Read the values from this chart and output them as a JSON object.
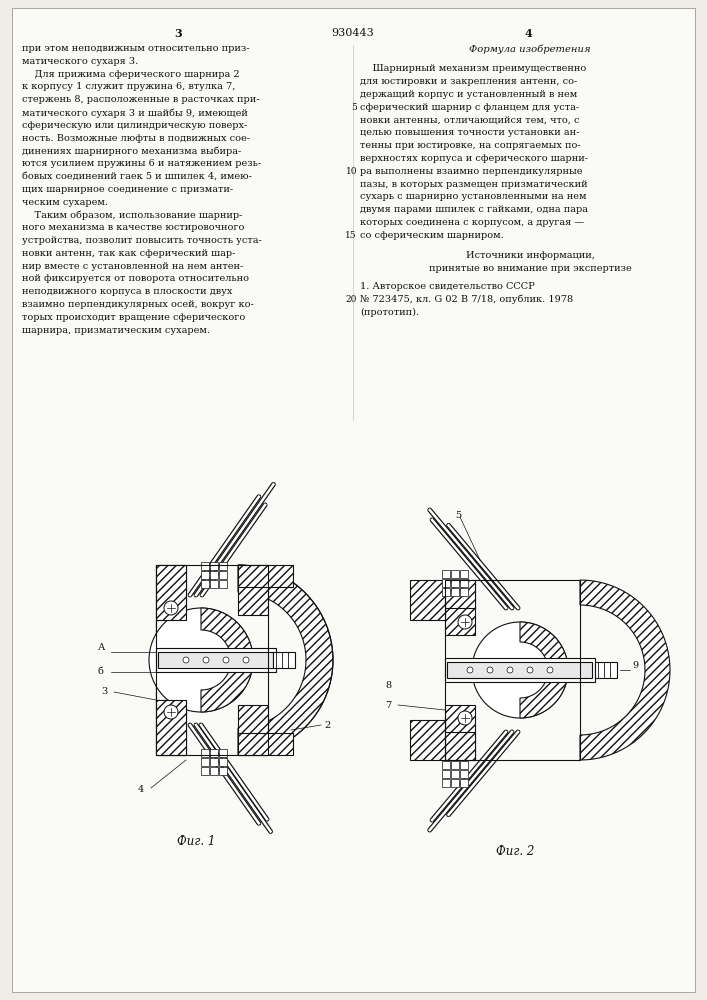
{
  "background_color": "#f0ede8",
  "page_color": "#fafaf7",
  "text_color": "#111111",
  "patent_number": "930443",
  "page_num_left": "3",
  "page_num_right": "4",
  "left_column_text": [
    "при этом неподвижным относительно приз-",
    "матического сухаря 3.",
    "    Для прижима сферического шарнира 2",
    "к корпусу 1 служит пружина 6, втулка 7,",
    "стержень 8, расположенные в расточках при-",
    "матического сухаря 3 и шайбы 9, имеющей",
    "сферическую или цилиндрическую поверх-",
    "ность. Возможные люфты в подвижных сое-",
    "динениях шарнирного механизма выбира-",
    "ются усилием пружины 6 и натяжением резь-",
    "бовых соединений гаек 5 и шпилек 4, имею-",
    "щих шарнирное соединение с призмати-",
    "ческим сухарем.",
    "    Таким образом, использование шарнир-",
    "ного механизма в качестве юстировочного",
    "устройства, позволит повысить точность уста-",
    "новки антенн, так как сферический шар-",
    "нир вместе с установленной на нем антен-",
    "ной фиксируется от поворота относительно",
    "неподвижного корпуса в плоскости двух",
    "взаимно перпендикулярных осей, вокруг ко-",
    "торых происходит вращение сферического",
    "шарнира, призматическим сухарем."
  ],
  "right_column_header": "Формула изобретения",
  "right_column_text": [
    "    Шарнирный механизм преимущественно",
    "для юстировки и закрепления антенн, со-",
    "держащий корпус и установленный в нем",
    "сферический шарнир с фланцем для уста-",
    "новки антенны, отличающийся тем, что, с",
    "целью повышения точности установки ан-",
    "тенны при юстировке, на сопрягаемых по-",
    "верхностях корпуса и сферического шарни-",
    "ра выполнены взаимно перпендикулярные",
    "пазы, в которых размещен призматический",
    "сухарь с шарнирно установленными на нем",
    "двумя парами шпилек с гайками, одна пара",
    "которых соединена с корпусом, а другая —",
    "со сферическим шарниром."
  ],
  "sources_header": "Источники информации,",
  "sources_subheader": "принятые во внимание при экспертизе",
  "source_1": "1. Авторское свидетельство СССР",
  "source_2": "№ 723475, кл. G 02 B 7/18, опублик. 1978",
  "source_3": "(прототип).",
  "line_numbers_right": [
    "5",
    "10",
    "15",
    "20"
  ],
  "fig1_caption": "Фиг. 1",
  "fig2_caption": "Фиг. 2"
}
